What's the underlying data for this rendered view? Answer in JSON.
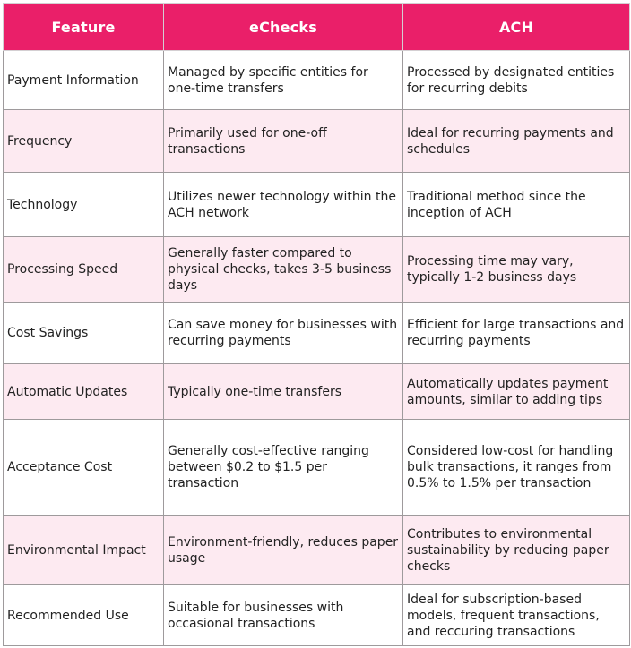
{
  "table": {
    "headers": [
      "Feature",
      "eChecks",
      "ACH"
    ],
    "rows": [
      [
        "Payment Information",
        "Managed by specific entities for one-time transfers",
        "Processed by designated entities for recurring debits"
      ],
      [
        "Frequency",
        "Primarily used for one-off transactions",
        "Ideal for recurring payments and schedules"
      ],
      [
        "Technology",
        "Utilizes newer technology within the ACH network",
        "Traditional method since the inception of ACH"
      ],
      [
        "Processing Speed",
        "Generally faster compared to physical checks, takes 3-5 business days",
        "Processing time may vary, typically 1-2 business days"
      ],
      [
        "Cost Savings",
        "Can save money for businesses with recurring payments",
        "Efficient for large transactions and recurring payments"
      ],
      [
        "Automatic Updates",
        "Typically one-time transfers",
        "Automatically updates payment amounts, similar to adding tips"
      ],
      [
        "Acceptance Cost",
        "Generally cost-effective ranging between $0.2 to $1.5 per transaction",
        "Considered low-cost for handling bulk transactions, it ranges from 0.5% to 1.5% per transaction"
      ],
      [
        "Environmental Impact",
        "Environment-friendly, reduces paper usage",
        "Contributes to environmental sustainability by reducing paper checks"
      ],
      [
        "Recommended Use",
        "Suitable for businesses with occasional transactions",
        "Ideal for subscription-based models, frequent transactions, and reccuring transactions"
      ]
    ]
  },
  "colors": {
    "header_bg": "#ea1f69",
    "header_text": "#ffffff",
    "stripe_bg": "#fdeaf1",
    "row_bg": "#ffffff"
  }
}
